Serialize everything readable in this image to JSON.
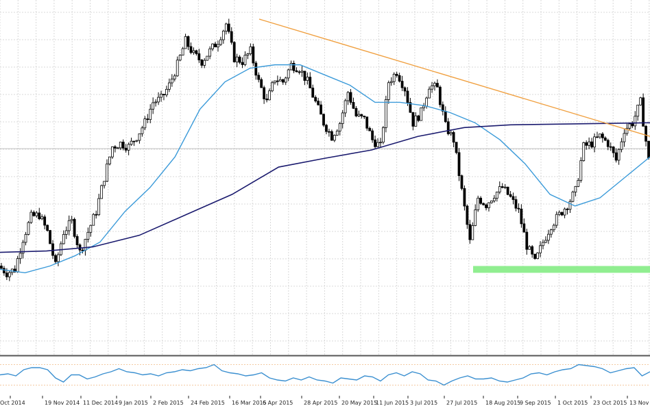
{
  "chart_data": {
    "type": "candlestick",
    "title": "",
    "xlabel": "",
    "ylabel": "",
    "grid": true,
    "x_tick_labels": [
      "Oct 2014",
      "19 Nov 2014",
      "11 Dec 2014",
      "9 Jan 2015",
      "2 Feb 2015",
      "24 Feb 2015",
      "16 Mar 2015",
      "6 Apr 2015",
      "28 Apr 2015",
      "20 May 2015",
      "11 Jun 2015",
      "3 Jul 2015",
      "27 Jul 2015",
      "18 Aug 2015",
      "9 Sep 2015",
      "1 Oct 2015",
      "23 Oct 2015",
      "13 Nov 2015"
    ],
    "ylim": [
      0,
      520
    ],
    "price_path": [
      130,
      120,
      125,
      170,
      202,
      205,
      180,
      130,
      180,
      195,
      150,
      180,
      210,
      260,
      305,
      310,
      305,
      320,
      340,
      370,
      375,
      395,
      425,
      460,
      440,
      430,
      445,
      460,
      485,
      435,
      430,
      445,
      400,
      370,
      405,
      400,
      425,
      420,
      400,
      370,
      340,
      320,
      340,
      385,
      350,
      345,
      315,
      305,
      400,
      415,
      390,
      340,
      355,
      395,
      390,
      335,
      315,
      240,
      165,
      230,
      220,
      235,
      245,
      230,
      210,
      160,
      135,
      165,
      190,
      205,
      220,
      240,
      305,
      310,
      320,
      310,
      285,
      330,
      340,
      370,
      285
    ],
    "series": [
      {
        "key": "ma_fast",
        "color": "#3a9ad9",
        "values": [
          125,
          120,
          130,
          145,
          165,
          210,
          245,
          290,
          360,
          400,
          420,
          425,
          425,
          410,
          395,
          370,
          370,
          365,
          355,
          340,
          315,
          280,
          235,
          218,
          230,
          260,
          290
        ]
      },
      {
        "key": "ma_slow",
        "color": "#1a1a6e",
        "values": [
          150,
          152,
          158,
          175,
          205,
          235,
          275,
          288,
          300,
          320,
          333,
          337,
          338,
          339,
          340
        ]
      },
      {
        "key": "trendline",
        "color": "#f0a040",
        "values": [
          492,
          320
        ]
      }
    ],
    "support_zone": {
      "color": "#90ee90",
      "price_low": 120,
      "price_high": 130
    },
    "current_price_line": 302,
    "oscillator": {
      "levels": [
        70,
        30
      ],
      "values": [
        50,
        52,
        48,
        60,
        64,
        64,
        60,
        44,
        36,
        50,
        50,
        42,
        46,
        52,
        56,
        62,
        56,
        54,
        50,
        52,
        48,
        54,
        56,
        60,
        58,
        62,
        64,
        70,
        58,
        54,
        52,
        48,
        50,
        54,
        44,
        40,
        38,
        44,
        40,
        46,
        40,
        38,
        34,
        44,
        42,
        40,
        48,
        46,
        38,
        50,
        54,
        48,
        56,
        52,
        40,
        38,
        30,
        38,
        44,
        48,
        42,
        42,
        44,
        38,
        36,
        40,
        44,
        52,
        54,
        50,
        56,
        60,
        62,
        70,
        68,
        66,
        62,
        54,
        58,
        62,
        64,
        48,
        56
      ]
    }
  }
}
